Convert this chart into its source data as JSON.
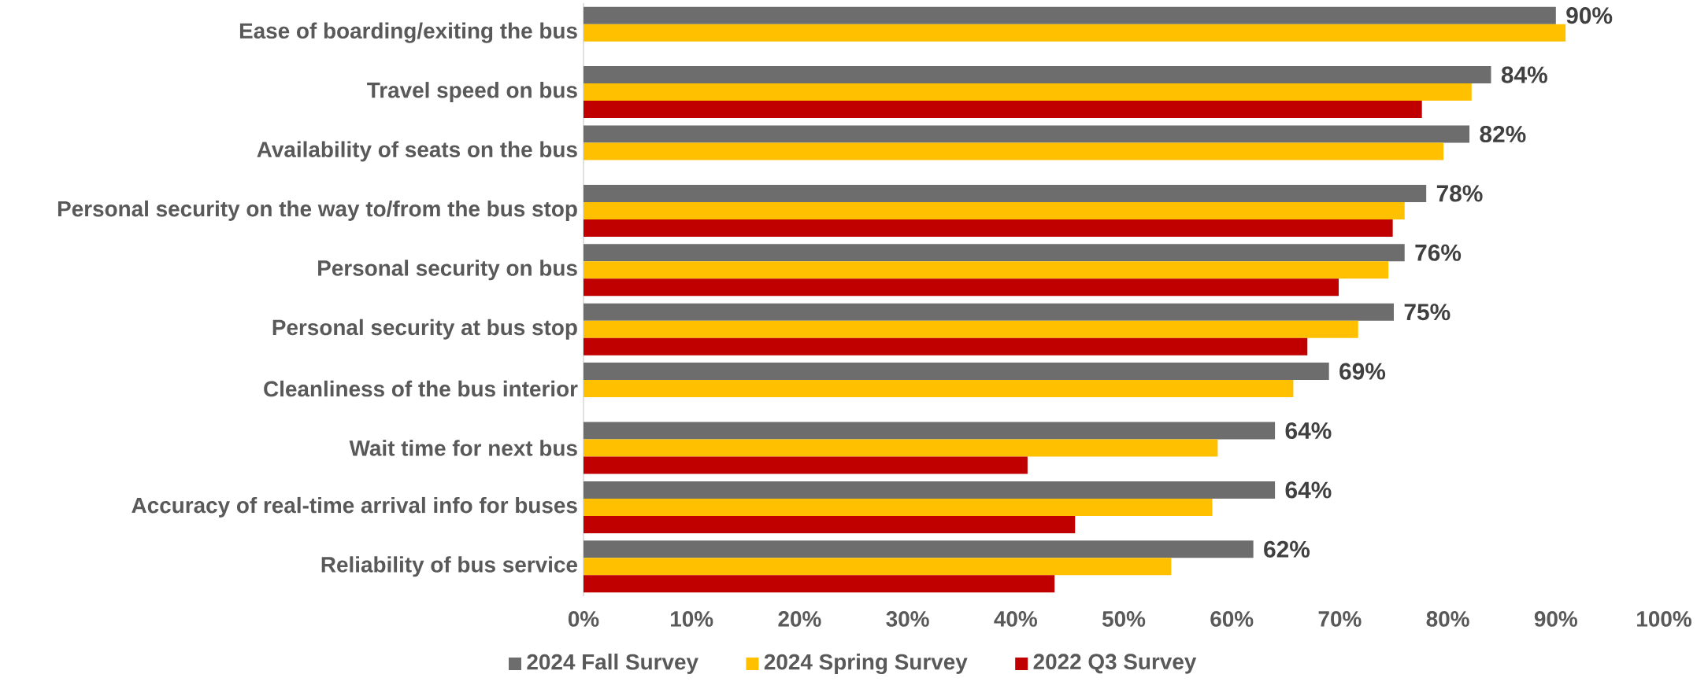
{
  "chart_data": {
    "type": "bar",
    "orientation": "horizontal",
    "categories": [
      "Ease of boarding/exiting the bus",
      "Travel speed on bus",
      "Availability of seats on the bus",
      "Personal security on the way to/from the bus stop",
      "Personal security on bus",
      "Personal security at bus stop",
      "Cleanliness of the bus interior",
      "Wait time for next bus",
      "Accuracy of real-time arrival info for buses",
      "Reliability of bus service"
    ],
    "series": [
      {
        "name": "2024 Fall Survey",
        "color": "#6d6d6d",
        "values": [
          90,
          84,
          82,
          78,
          76,
          75,
          69,
          64,
          64,
          62
        ],
        "value_labels": [
          "90%",
          "84%",
          "82%",
          "78%",
          "76%",
          "75%",
          "69%",
          "64%",
          "64%",
          "62%"
        ]
      },
      {
        "name": "2024 Spring Survey",
        "color": "#ffc000",
        "values": [
          90.9,
          82.2,
          79.6,
          76.0,
          74.5,
          71.7,
          65.7,
          58.7,
          58.2,
          54.4
        ]
      },
      {
        "name": "2022 Q3 Survey",
        "color": "#c00000",
        "values": [
          null,
          77.6,
          null,
          74.9,
          69.9,
          67.0,
          null,
          41.1,
          45.5,
          43.6
        ]
      }
    ],
    "xlim": [
      0,
      100
    ],
    "xticks": [
      {
        "value": 0,
        "label": "0%"
      },
      {
        "value": 10,
        "label": "10%"
      },
      {
        "value": 20,
        "label": "20%"
      },
      {
        "value": 30,
        "label": "30%"
      },
      {
        "value": 40,
        "label": "40%"
      },
      {
        "value": 50,
        "label": "50%"
      },
      {
        "value": 60,
        "label": "60%"
      },
      {
        "value": 70,
        "label": "70%"
      },
      {
        "value": 80,
        "label": "80%"
      },
      {
        "value": 90,
        "label": "90%"
      },
      {
        "value": 100,
        "label": "100%"
      }
    ],
    "legend": "bottom"
  }
}
